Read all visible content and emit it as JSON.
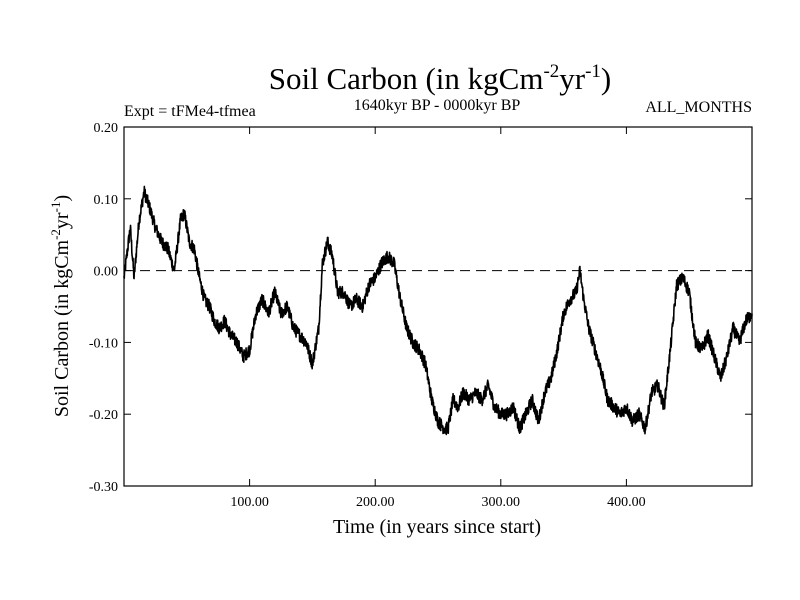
{
  "chart_data": {
    "type": "line",
    "title": {
      "main": "Soil Carbon (in kgCm",
      "sup1": "-2",
      "mid": "yr",
      "sup2": "-1",
      "end": ")"
    },
    "subtitle_left": "Expt = tFMe4-tfmea",
    "subtitle_center": "1640kyr BP - 0000kyr BP",
    "subtitle_right": "ALL_MONTHS",
    "xlabel": "Time (in years since start)",
    "ylabel": {
      "main": "Soil Carbon (in kgCm",
      "sup1": "-2",
      "mid": "yr",
      "sup2": "-1",
      "end": ")"
    },
    "xlim": [
      0,
      500
    ],
    "ylim": [
      -0.3,
      0.2
    ],
    "xticks": [
      100,
      200,
      300,
      400
    ],
    "xtick_labels": [
      "100.00",
      "200.00",
      "300.00",
      "400.00"
    ],
    "yticks": [
      0.2,
      0.1,
      0.0,
      -0.1,
      -0.2,
      -0.3
    ],
    "ytick_labels": [
      "0.20",
      "0.10",
      "0.00",
      "-0.10",
      "-0.20",
      "-0.30"
    ],
    "reference_line": {
      "y": 0.0,
      "style": "dashed"
    },
    "line_color": "#000000",
    "series": [
      {
        "name": "Soil Carbon",
        "x": [
          0,
          5,
          8,
          12,
          16,
          20,
          25,
          30,
          35,
          40,
          45,
          48,
          52,
          56,
          60,
          64,
          68,
          72,
          76,
          80,
          85,
          90,
          95,
          100,
          105,
          110,
          115,
          120,
          125,
          130,
          135,
          140,
          145,
          150,
          155,
          158,
          162,
          166,
          170,
          175,
          180,
          185,
          190,
          195,
          200,
          205,
          210,
          215,
          220,
          225,
          230,
          235,
          240,
          245,
          250,
          255,
          258,
          262,
          266,
          270,
          275,
          280,
          285,
          290,
          295,
          300,
          305,
          310,
          315,
          320,
          325,
          330,
          335,
          340,
          345,
          350,
          355,
          360,
          363,
          366,
          370,
          375,
          380,
          385,
          390,
          395,
          400,
          405,
          410,
          415,
          420,
          425,
          430,
          435,
          440,
          445,
          450,
          455,
          460,
          465,
          470,
          475,
          480,
          485,
          490,
          495,
          500
        ],
        "y": [
          -0.01,
          0.06,
          -0.01,
          0.07,
          0.11,
          0.09,
          0.06,
          0.04,
          0.03,
          0.0,
          0.07,
          0.08,
          0.04,
          0.03,
          -0.01,
          -0.04,
          -0.05,
          -0.07,
          -0.08,
          -0.07,
          -0.09,
          -0.1,
          -0.12,
          -0.11,
          -0.06,
          -0.04,
          -0.06,
          -0.03,
          -0.06,
          -0.05,
          -0.08,
          -0.09,
          -0.1,
          -0.13,
          -0.08,
          0.01,
          0.04,
          0.02,
          -0.03,
          -0.03,
          -0.05,
          -0.04,
          -0.05,
          -0.02,
          -0.01,
          0.01,
          0.02,
          0.01,
          -0.04,
          -0.08,
          -0.1,
          -0.11,
          -0.13,
          -0.18,
          -0.21,
          -0.22,
          -0.22,
          -0.18,
          -0.19,
          -0.17,
          -0.18,
          -0.17,
          -0.18,
          -0.16,
          -0.19,
          -0.2,
          -0.2,
          -0.19,
          -0.22,
          -0.2,
          -0.18,
          -0.21,
          -0.17,
          -0.15,
          -0.11,
          -0.06,
          -0.04,
          -0.03,
          0.0,
          -0.04,
          -0.08,
          -0.11,
          -0.14,
          -0.18,
          -0.19,
          -0.2,
          -0.19,
          -0.21,
          -0.2,
          -0.22,
          -0.17,
          -0.16,
          -0.19,
          -0.11,
          -0.02,
          -0.01,
          -0.03,
          -0.1,
          -0.11,
          -0.09,
          -0.12,
          -0.15,
          -0.12,
          -0.08,
          -0.1,
          -0.07,
          -0.06
        ]
      }
    ]
  }
}
